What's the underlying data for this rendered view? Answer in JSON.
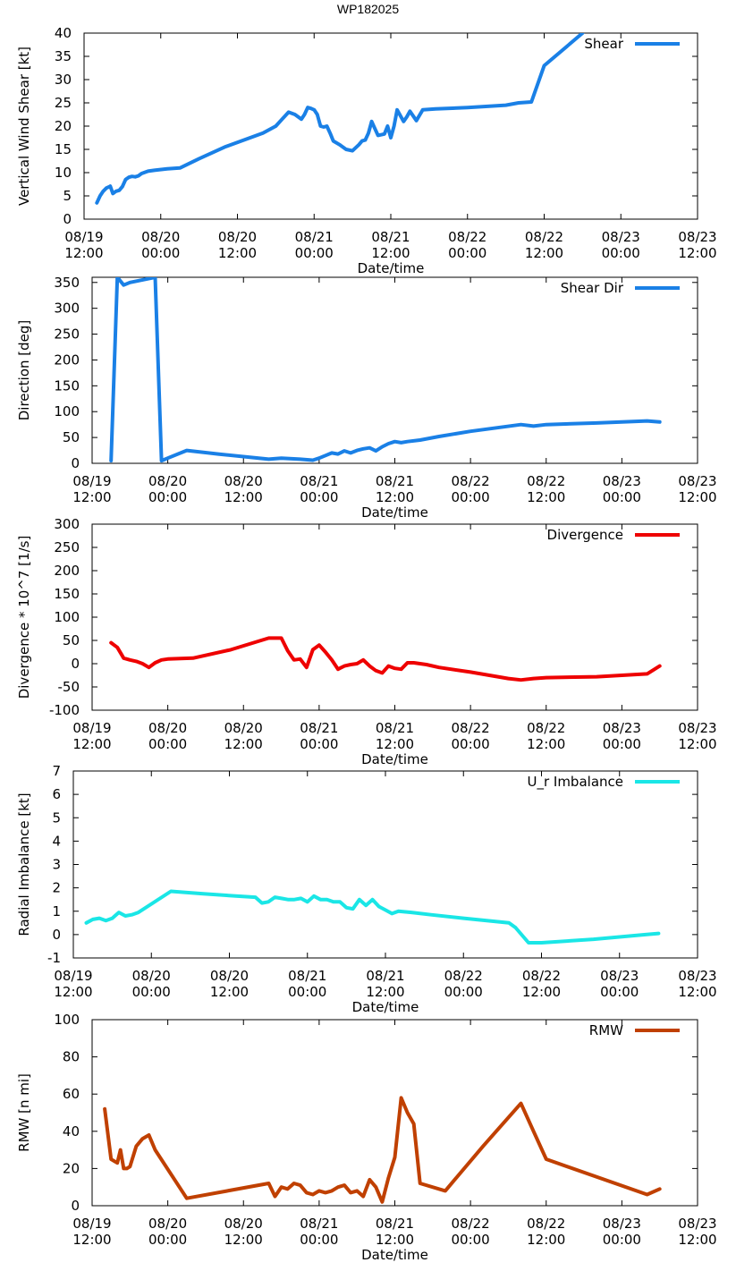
{
  "page_title": "WP182025",
  "colors": {
    "shear": "#1a80e6",
    "shear_dir": "#1a80e6",
    "divergence": "#ee0000",
    "imbalance": "#1ae6e6",
    "rmw": "#c04000"
  },
  "chart_data": [
    {
      "type": "line",
      "title": "",
      "ylabel": "Vertical Wind Shear [kt]",
      "xlabel": "Date/time",
      "ylim": [
        0,
        40
      ],
      "yticks": [
        0,
        5,
        10,
        15,
        20,
        25,
        30,
        35,
        40
      ],
      "xlim": [
        0,
        96
      ],
      "xticks": [
        {
          "t": 0,
          "date": "08/19",
          "time": "12:00"
        },
        {
          "t": 12,
          "date": "08/20",
          "time": "00:00"
        },
        {
          "t": 24,
          "date": "08/20",
          "time": "12:00"
        },
        {
          "t": 36,
          "date": "08/21",
          "time": "00:00"
        },
        {
          "t": 48,
          "date": "08/21",
          "time": "12:00"
        },
        {
          "t": 60,
          "date": "08/22",
          "time": "00:00"
        },
        {
          "t": 72,
          "date": "08/22",
          "time": "12:00"
        },
        {
          "t": 84,
          "date": "08/23",
          "time": "00:00"
        },
        {
          "t": 96,
          "date": "08/23",
          "time": "12:00"
        }
      ],
      "series": [
        {
          "name": "Shear",
          "color": "#1a80e6",
          "x": [
            2,
            2.5,
            3,
            3.5,
            4,
            4.1,
            4.5,
            5,
            5.5,
            6,
            6.5,
            7,
            7.5,
            8,
            8.5,
            9,
            10,
            11,
            13,
            15,
            18,
            22,
            28,
            30,
            31,
            32,
            33,
            34,
            34.5,
            35,
            35.5,
            36,
            36.5,
            37,
            37.5,
            38,
            38.5,
            39,
            40,
            41,
            42,
            43,
            43.5,
            44,
            44.5,
            45,
            45.5,
            46,
            47,
            47.5,
            48,
            48.5,
            49,
            50,
            50.5,
            51,
            52,
            53,
            55,
            60,
            66,
            68,
            70,
            72,
            78
          ],
          "y": [
            3.5,
            5,
            6,
            6.7,
            7,
            7.1,
            5.5,
            6,
            6.2,
            7,
            8.5,
            9,
            9.2,
            9.1,
            9.3,
            9.8,
            10.3,
            10.5,
            10.8,
            11,
            13,
            15.5,
            18.5,
            20,
            21.5,
            23,
            22.5,
            21.5,
            22.5,
            24,
            23.8,
            23.5,
            22.5,
            20,
            19.8,
            20,
            18.5,
            16.8,
            16,
            15,
            14.7,
            16,
            16.8,
            17,
            18.5,
            21,
            19.5,
            18,
            18.3,
            20,
            17.5,
            20,
            23.5,
            21,
            22,
            23.2,
            21.2,
            23.5,
            23.7,
            24,
            24.5,
            25,
            25.2,
            33,
            40
          ]
        }
      ]
    },
    {
      "type": "line",
      "title": "",
      "ylabel": "Direction [deg]",
      "xlabel": "Date/time",
      "ylim": [
        0,
        360
      ],
      "yticks": [
        0,
        50,
        100,
        150,
        200,
        250,
        300,
        350
      ],
      "xlim": [
        0,
        96
      ],
      "xticks": [
        {
          "t": 0,
          "date": "08/19",
          "time": "12:00"
        },
        {
          "t": 12,
          "date": "08/20",
          "time": "00:00"
        },
        {
          "t": 24,
          "date": "08/20",
          "time": "12:00"
        },
        {
          "t": 36,
          "date": "08/21",
          "time": "00:00"
        },
        {
          "t": 48,
          "date": "08/21",
          "time": "12:00"
        },
        {
          "t": 60,
          "date": "08/22",
          "time": "00:00"
        },
        {
          "t": 72,
          "date": "08/22",
          "time": "12:00"
        },
        {
          "t": 84,
          "date": "08/23",
          "time": "00:00"
        },
        {
          "t": 96,
          "date": "08/23",
          "time": "12:00"
        }
      ],
      "series": [
        {
          "name": "Shear Dir",
          "color": "#1a80e6",
          "x": [
            3,
            4,
            5,
            6,
            8,
            10,
            11,
            12,
            15,
            20,
            28,
            30,
            33,
            35,
            36,
            37,
            38,
            39,
            40,
            41,
            42,
            43,
            44,
            45,
            46,
            47,
            48,
            49,
            50,
            52,
            55,
            60,
            68,
            70,
            72,
            80,
            88,
            90
          ],
          "y": [
            5,
            360,
            345,
            350,
            355,
            360,
            5,
            10,
            25,
            18,
            8,
            10,
            8,
            6,
            10,
            15,
            20,
            18,
            24,
            20,
            25,
            28,
            30,
            24,
            32,
            38,
            42,
            40,
            42,
            45,
            52,
            62,
            75,
            72,
            75,
            78,
            82,
            80
          ]
        }
      ]
    },
    {
      "type": "line",
      "title": "",
      "ylabel": "Divergence * 10^7 [1/s]",
      "xlabel": "Date/time",
      "ylim": [
        -100,
        300
      ],
      "yticks": [
        -100,
        -50,
        0,
        50,
        100,
        150,
        200,
        250,
        300
      ],
      "xlim": [
        0,
        96
      ],
      "xticks": [
        {
          "t": 0,
          "date": "08/19",
          "time": "12:00"
        },
        {
          "t": 12,
          "date": "08/20",
          "time": "00:00"
        },
        {
          "t": 24,
          "date": "08/20",
          "time": "12:00"
        },
        {
          "t": 36,
          "date": "08/21",
          "time": "00:00"
        },
        {
          "t": 48,
          "date": "08/21",
          "time": "12:00"
        },
        {
          "t": 60,
          "date": "08/22",
          "time": "00:00"
        },
        {
          "t": 72,
          "date": "08/22",
          "time": "12:00"
        },
        {
          "t": 84,
          "date": "08/23",
          "time": "00:00"
        },
        {
          "t": 96,
          "date": "08/23",
          "time": "12:00"
        }
      ],
      "series": [
        {
          "name": "Divergence",
          "color": "#ee0000",
          "x": [
            3,
            4,
            5,
            6,
            7,
            8,
            9,
            10,
            11,
            12,
            16,
            22,
            28,
            30,
            31,
            32,
            33,
            34,
            35,
            36,
            37,
            38,
            39,
            40,
            41,
            42,
            43,
            44,
            45,
            46,
            47,
            48,
            49,
            50,
            51,
            52,
            53,
            55,
            60,
            66,
            68,
            70,
            72,
            80,
            88,
            90
          ],
          "y": [
            45,
            35,
            12,
            8,
            5,
            0,
            -8,
            2,
            8,
            10,
            12,
            30,
            55,
            55,
            28,
            8,
            10,
            -8,
            30,
            40,
            25,
            8,
            -12,
            -5,
            -2,
            0,
            8,
            -5,
            -15,
            -20,
            -5,
            -10,
            -12,
            2,
            2,
            0,
            -2,
            -8,
            -18,
            -32,
            -35,
            -32,
            -30,
            -28,
            -22,
            -5
          ]
        }
      ]
    },
    {
      "type": "line",
      "title": "",
      "ylabel": "Radial Imbalance [kt]",
      "xlabel": "Date/time",
      "ylim": [
        -1,
        7
      ],
      "yticks": [
        -1,
        0,
        1,
        2,
        3,
        4,
        5,
        6,
        7
      ],
      "xlim": [
        0,
        96
      ],
      "xticks": [
        {
          "t": 0,
          "date": "08/19",
          "time": "12:00"
        },
        {
          "t": 12,
          "date": "08/20",
          "time": "00:00"
        },
        {
          "t": 24,
          "date": "08/20",
          "time": "12:00"
        },
        {
          "t": 36,
          "date": "08/21",
          "time": "00:00"
        },
        {
          "t": 48,
          "date": "08/21",
          "time": "12:00"
        },
        {
          "t": 60,
          "date": "08/22",
          "time": "00:00"
        },
        {
          "t": 72,
          "date": "08/22",
          "time": "12:00"
        },
        {
          "t": 84,
          "date": "08/23",
          "time": "00:00"
        },
        {
          "t": 96,
          "date": "08/23",
          "time": "12:00"
        }
      ],
      "series": [
        {
          "name": "U_r Imbalance",
          "color": "#1ae6e6",
          "x": [
            2,
            3,
            4,
            5,
            6,
            7,
            8,
            9,
            10,
            15,
            20,
            25,
            28,
            29,
            30,
            31,
            32,
            33,
            34,
            35,
            36,
            37,
            38,
            39,
            40,
            41,
            42,
            43,
            44,
            45,
            46,
            47,
            48,
            49,
            50,
            52,
            55,
            60,
            67,
            68,
            70,
            72,
            80,
            88,
            90
          ],
          "y": [
            0.5,
            0.65,
            0.7,
            0.6,
            0.7,
            0.95,
            0.8,
            0.85,
            0.95,
            1.85,
            1.75,
            1.65,
            1.6,
            1.35,
            1.4,
            1.6,
            1.55,
            1.5,
            1.5,
            1.55,
            1.4,
            1.65,
            1.5,
            1.5,
            1.4,
            1.4,
            1.15,
            1.1,
            1.5,
            1.25,
            1.5,
            1.2,
            1.05,
            0.9,
            1.0,
            0.95,
            0.85,
            0.7,
            0.5,
            0.3,
            -0.35,
            -0.35,
            -0.2,
            0.0,
            0.05
          ]
        }
      ]
    },
    {
      "type": "line",
      "title": "",
      "ylabel": "RMW [n mi]",
      "xlabel": "Date/time",
      "ylim": [
        0,
        100
      ],
      "yticks": [
        0,
        20,
        40,
        60,
        80,
        100
      ],
      "xlim": [
        0,
        96
      ],
      "xticks": [
        {
          "t": 0,
          "date": "08/19",
          "time": "12:00"
        },
        {
          "t": 12,
          "date": "08/20",
          "time": "00:00"
        },
        {
          "t": 24,
          "date": "08/20",
          "time": "12:00"
        },
        {
          "t": 36,
          "date": "08/21",
          "time": "00:00"
        },
        {
          "t": 48,
          "date": "08/21",
          "time": "12:00"
        },
        {
          "t": 60,
          "date": "08/22",
          "time": "00:00"
        },
        {
          "t": 72,
          "date": "08/22",
          "time": "12:00"
        },
        {
          "t": 84,
          "date": "08/23",
          "time": "00:00"
        },
        {
          "t": 96,
          "date": "08/23",
          "time": "12:00"
        }
      ],
      "series": [
        {
          "name": "RMW",
          "color": "#c04000",
          "x": [
            2,
            3,
            4,
            4.5,
            5,
            5.5,
            6,
            7,
            8,
            9,
            10,
            15,
            28,
            29,
            30,
            31,
            32,
            33,
            34,
            35,
            36,
            37,
            38,
            39,
            40,
            41,
            42,
            43,
            44,
            45,
            46,
            47,
            48,
            49,
            50,
            51,
            52,
            56,
            62,
            68,
            70,
            72,
            88,
            90
          ],
          "y": [
            52,
            25,
            23,
            30,
            20,
            20,
            21,
            32,
            36,
            38,
            30,
            4,
            12,
            5,
            10,
            9,
            12,
            11,
            7,
            6,
            8,
            7,
            8,
            10,
            11,
            7,
            8,
            5,
            14,
            10,
            2,
            15,
            26,
            58,
            50,
            44,
            12,
            8,
            32,
            55,
            40,
            25,
            6,
            9
          ]
        }
      ]
    }
  ]
}
